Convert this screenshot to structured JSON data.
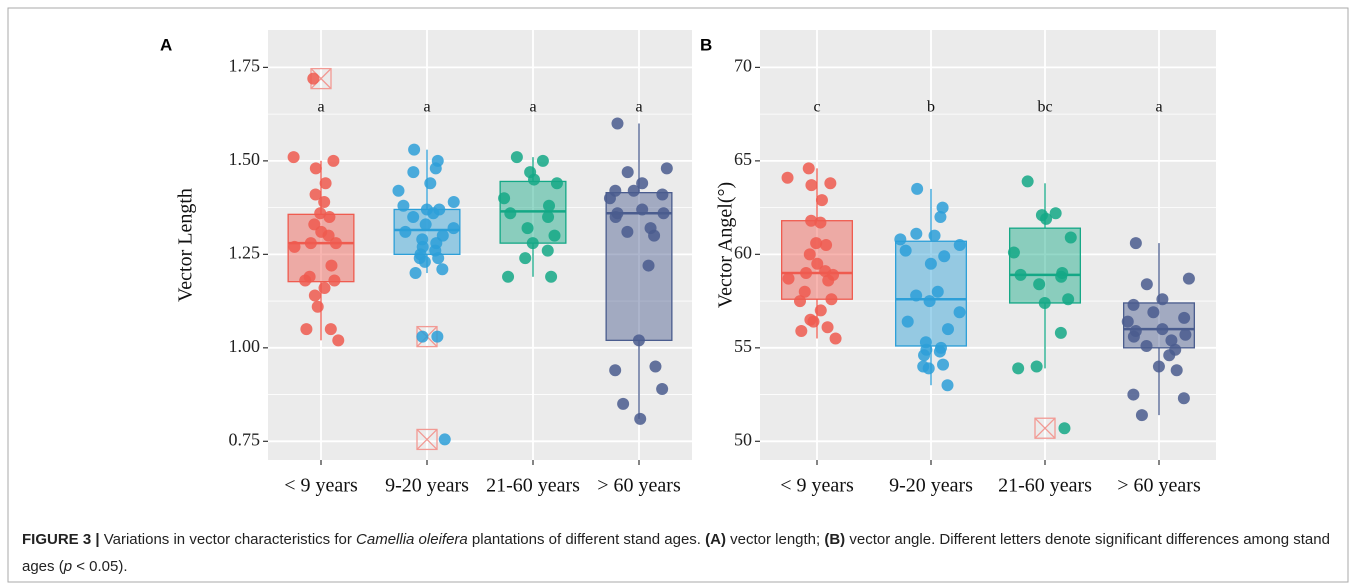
{
  "chart_data": [
    {
      "type": "box",
      "panel": "A",
      "ylabel": "Vector Length",
      "categories": [
        "< 9 years",
        "9-20 years",
        "21-60 years",
        "> 60 years"
      ],
      "colors": [
        "#ef5b4f",
        "#2d9fd8",
        "#14a886",
        "#4a5c8e"
      ],
      "significance": [
        "a",
        "a",
        "a",
        "a"
      ],
      "ylim": [
        0.7,
        1.85
      ],
      "yticks": [
        {
          "value": 0.75,
          "label": "0.75"
        },
        {
          "value": 1.0,
          "label": "1.00"
        },
        {
          "value": 1.25,
          "label": "1.25"
        },
        {
          "value": 1.5,
          "label": "1.50"
        },
        {
          "value": 1.75,
          "label": "1.75"
        }
      ],
      "boxes": [
        {
          "whisker_low": 1.02,
          "q1": 1.177,
          "median": 1.28,
          "q3": 1.357,
          "whisker_high": 1.5
        },
        {
          "whisker_low": 1.2,
          "q1": 1.25,
          "median": 1.315,
          "q3": 1.37,
          "whisker_high": 1.53
        },
        {
          "whisker_low": 1.19,
          "q1": 1.28,
          "median": 1.365,
          "q3": 1.445,
          "whisker_high": 1.51
        },
        {
          "whisker_low": 0.81,
          "q1": 1.02,
          "median": 1.36,
          "q3": 1.415,
          "whisker_high": 1.6
        }
      ],
      "outliers": [
        [
          1.72
        ],
        [
          1.03,
          0.755
        ],
        [],
        []
      ],
      "points": [
        [
          1.72,
          1.51,
          1.5,
          1.48,
          1.44,
          1.41,
          1.39,
          1.36,
          1.35,
          1.33,
          1.31,
          1.3,
          1.28,
          1.28,
          1.27,
          1.22,
          1.19,
          1.18,
          1.18,
          1.16,
          1.14,
          1.11,
          1.05,
          1.05,
          1.02
        ],
        [
          1.53,
          1.5,
          1.48,
          1.47,
          1.44,
          1.42,
          1.39,
          1.38,
          1.37,
          1.37,
          1.36,
          1.35,
          1.33,
          1.32,
          1.31,
          1.3,
          1.29,
          1.28,
          1.27,
          1.26,
          1.25,
          1.24,
          1.24,
          1.23,
          1.21,
          1.2,
          1.03,
          1.03,
          0.755
        ],
        [
          1.51,
          1.5,
          1.47,
          1.45,
          1.44,
          1.4,
          1.38,
          1.36,
          1.35,
          1.32,
          1.3,
          1.28,
          1.26,
          1.24,
          1.19,
          1.19
        ],
        [
          1.6,
          1.48,
          1.47,
          1.44,
          1.42,
          1.42,
          1.41,
          1.4,
          1.37,
          1.36,
          1.36,
          1.35,
          1.32,
          1.31,
          1.3,
          1.22,
          1.02,
          0.95,
          0.94,
          0.89,
          0.85,
          0.81
        ]
      ]
    },
    {
      "type": "box",
      "panel": "B",
      "ylabel": "Vector Angel(°)",
      "categories": [
        "< 9 years",
        "9-20 years",
        "21-60 years",
        "> 60 years"
      ],
      "colors": [
        "#ef5b4f",
        "#2d9fd8",
        "#14a886",
        "#4a5c8e"
      ],
      "significance": [
        "c",
        "b",
        "bc",
        "a"
      ],
      "ylim": [
        49,
        72
      ],
      "yticks": [
        50,
        55,
        60,
        65,
        70
      ],
      "boxes": [
        {
          "whisker_low": 55.5,
          "q1": 57.6,
          "median": 59.0,
          "q3": 61.8,
          "whisker_high": 64.6
        },
        {
          "whisker_low": 53.0,
          "q1": 55.1,
          "median": 57.6,
          "q3": 60.7,
          "whisker_high": 63.5
        },
        {
          "whisker_low": 53.9,
          "q1": 57.4,
          "median": 58.9,
          "q3": 61.4,
          "whisker_high": 63.8
        },
        {
          "whisker_low": 51.4,
          "q1": 55.0,
          "median": 56.0,
          "q3": 57.4,
          "whisker_high": 60.6
        }
      ],
      "outliers": [
        [],
        [],
        [
          50.7
        ],
        []
      ],
      "points": [
        [
          64.6,
          64.1,
          63.8,
          63.7,
          62.9,
          61.8,
          61.7,
          60.6,
          60.5,
          60.0,
          59.5,
          59.1,
          59.0,
          58.9,
          58.7,
          58.6,
          58.0,
          57.6,
          57.5,
          57.0,
          56.5,
          56.4,
          56.1,
          55.9,
          55.5
        ],
        [
          63.5,
          62.5,
          62.0,
          61.1,
          61.0,
          60.8,
          60.5,
          60.2,
          59.9,
          59.5,
          58.0,
          57.8,
          57.5,
          56.9,
          56.4,
          56.0,
          55.3,
          55.0,
          54.9,
          54.8,
          54.6,
          54.1,
          54.0,
          53.9,
          53.0
        ],
        [
          63.9,
          62.2,
          62.1,
          61.9,
          60.9,
          60.1,
          59.0,
          58.9,
          58.8,
          58.4,
          57.6,
          57.4,
          55.8,
          54.0,
          53.9,
          50.7
        ],
        [
          60.6,
          58.7,
          58.4,
          57.6,
          57.3,
          56.9,
          56.6,
          56.4,
          56.0,
          55.9,
          55.7,
          55.6,
          55.4,
          55.1,
          54.9,
          54.6,
          54.0,
          53.8,
          52.5,
          52.3,
          51.4
        ]
      ]
    }
  ],
  "caption": [
    {
      "text": "FIGURE 3 |",
      "style": "bold"
    },
    {
      "text": " Variations in vector characteristics for ",
      "style": "normal"
    },
    {
      "text": "Camellia oleifera",
      "style": "italic"
    },
    {
      "text": " plantations of different stand ages. ",
      "style": "normal"
    },
    {
      "text": "(A)",
      "style": "bold"
    },
    {
      "text": " vector length; ",
      "style": "normal"
    },
    {
      "text": "(B)",
      "style": "bold"
    },
    {
      "text": " vector angle. Different letters denote significant differences among stand ages (",
      "style": "normal"
    },
    {
      "text": "p",
      "style": "italic"
    },
    {
      "text": " < 0.05).",
      "style": "normal"
    }
  ]
}
